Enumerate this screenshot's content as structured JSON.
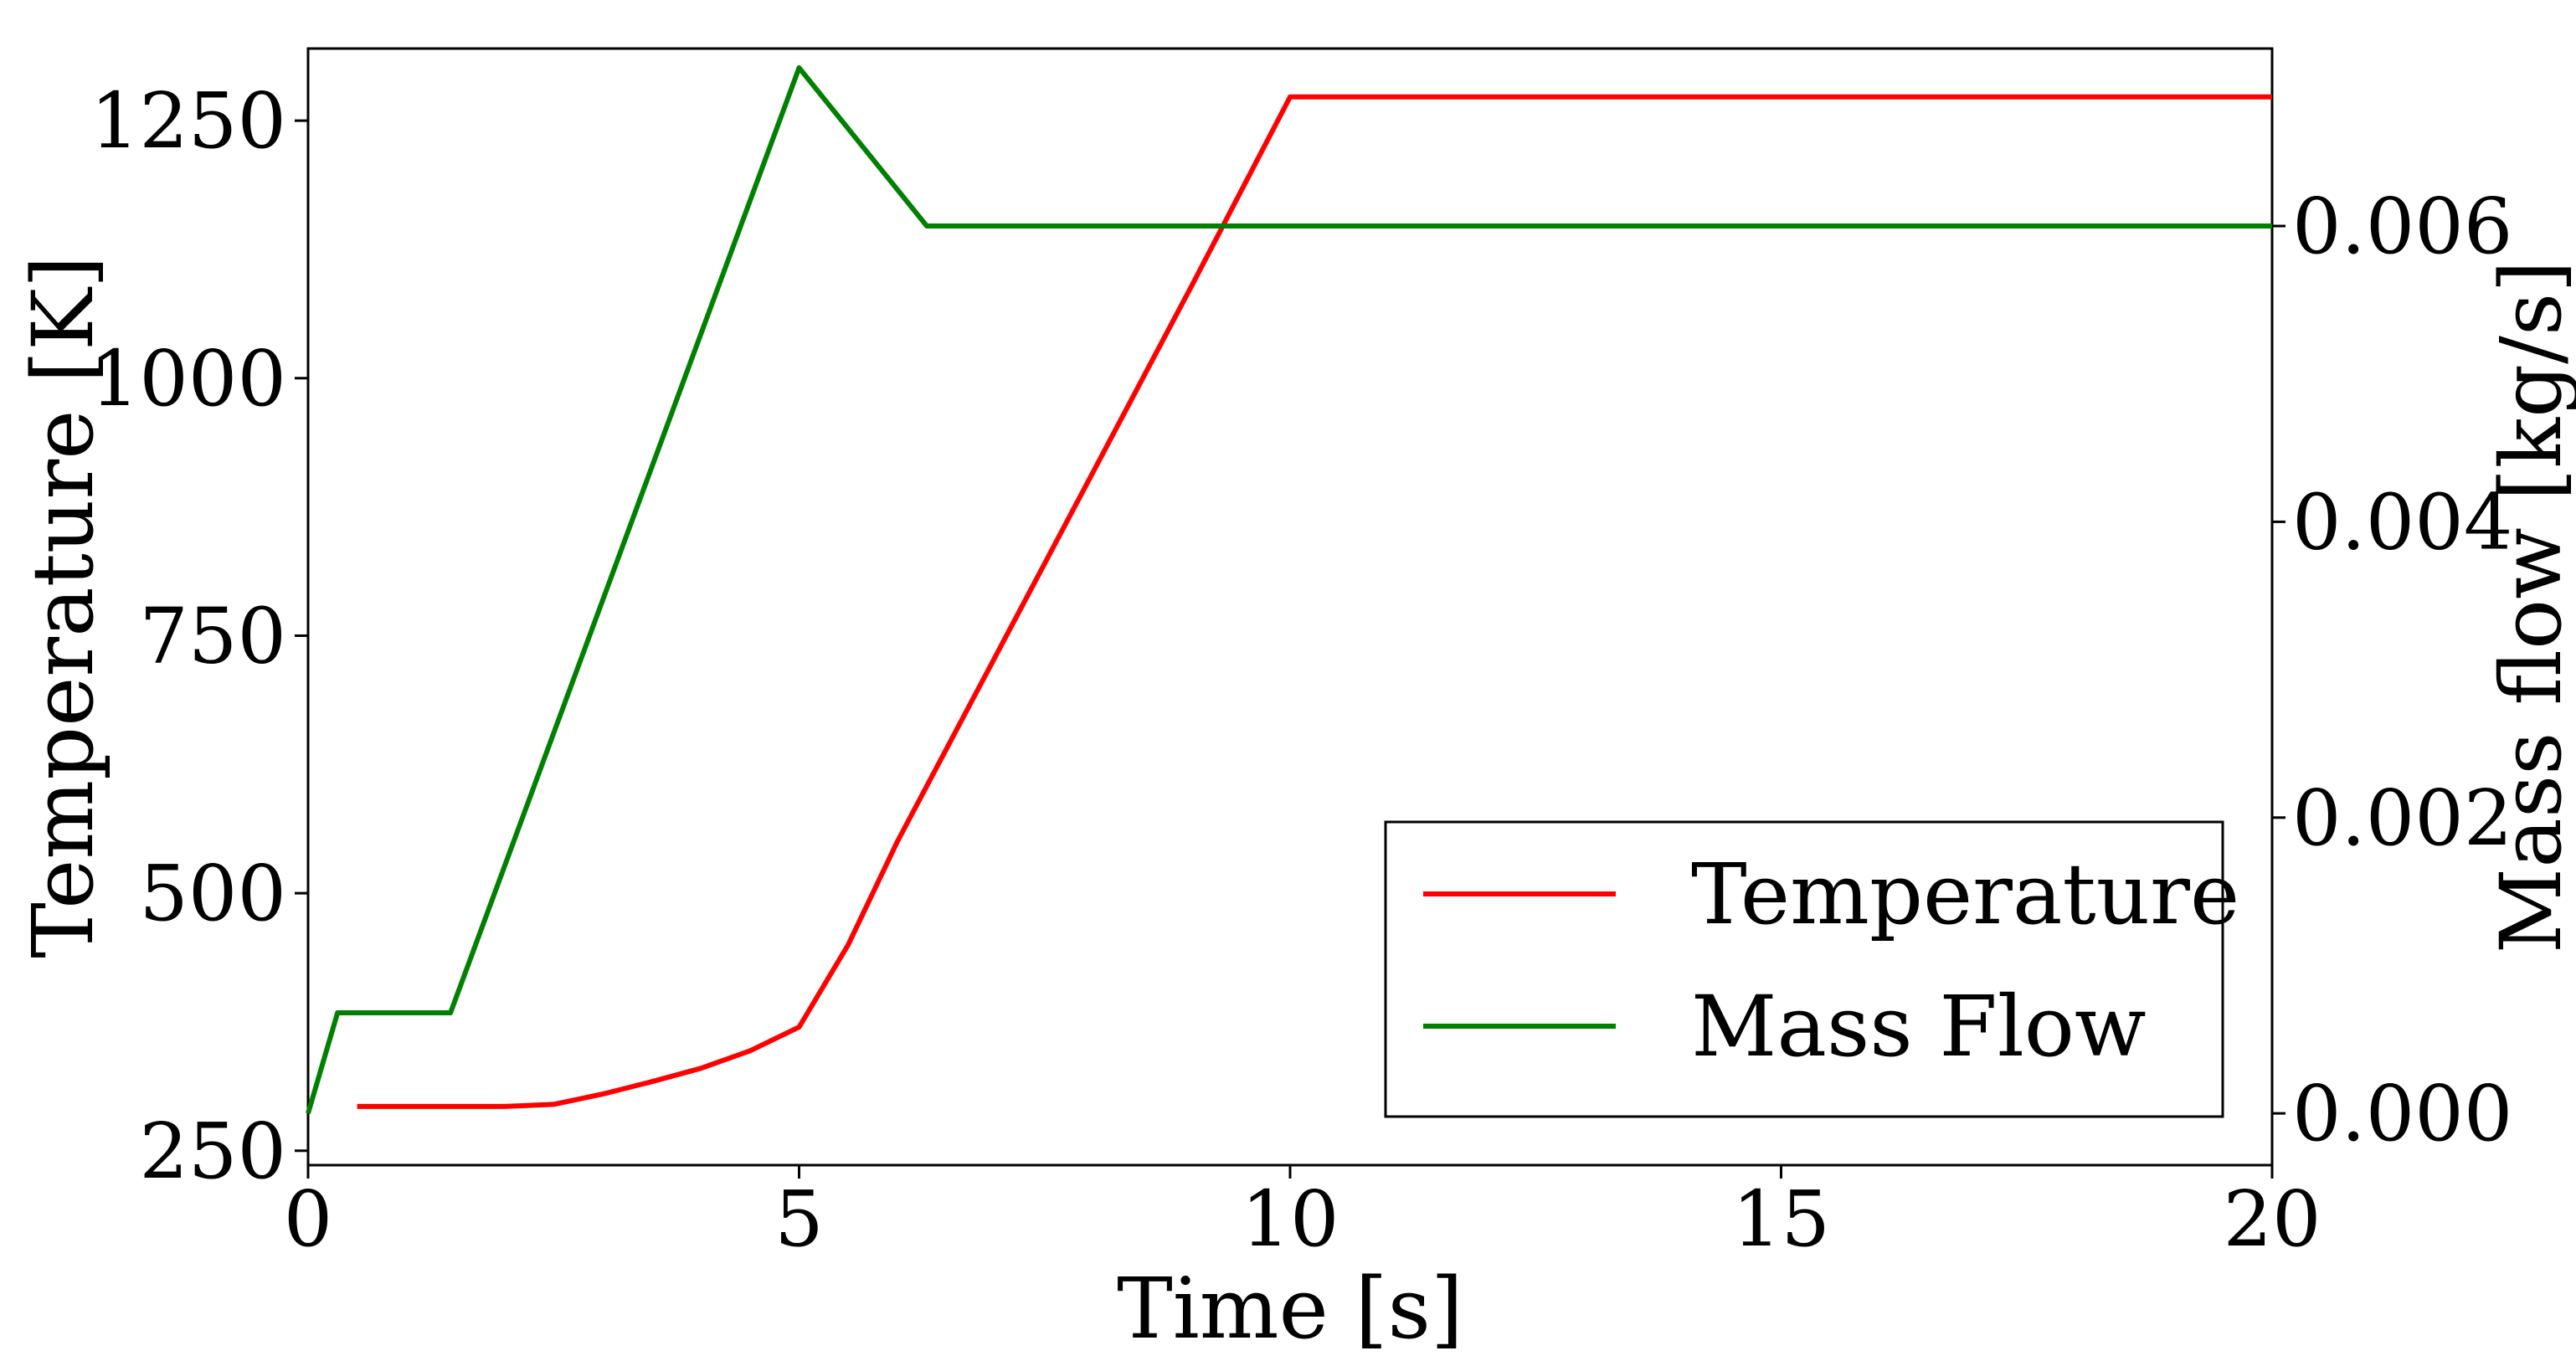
{
  "chart_data": {
    "type": "line",
    "title": "",
    "xlabel": "Time [s]",
    "ylabel_left": "Temperature [K]",
    "ylabel_right": "Mass flow [kg/s]",
    "xlim": [
      0,
      20
    ],
    "ylim_left": [
      236,
      1320
    ],
    "ylim_right": [
      -0.00035,
      0.0072
    ],
    "xticks": [
      0,
      5,
      10,
      15,
      20
    ],
    "xtick_labels": [
      "0",
      "5",
      "10",
      "15",
      "20"
    ],
    "yticks_left": [
      250,
      500,
      750,
      1000,
      1250
    ],
    "ytick_labels_left": [
      "250",
      "500",
      "750",
      "1000",
      "1250"
    ],
    "yticks_right": [
      0.0,
      0.002,
      0.004,
      0.006
    ],
    "ytick_labels_right": [
      "0.000",
      "0.002",
      "0.004",
      "0.006"
    ],
    "grid": false,
    "legend_position": "bottom-right",
    "series": [
      {
        "name": "Temperature",
        "label": "Temperature",
        "axis": "left",
        "color": "#ff0000",
        "x": [
          0.5,
          1.0,
          1.5,
          2.0,
          2.5,
          3.0,
          3.5,
          4.0,
          4.5,
          5.0,
          5.5,
          6.0,
          7.0,
          8.0,
          9.0,
          10.0,
          20.0
        ],
        "y": [
          293,
          293,
          293,
          293,
          295,
          305,
          317,
          330,
          347,
          370,
          450,
          550,
          730,
          910,
          1090,
          1273,
          1273
        ]
      },
      {
        "name": "Mass Flow",
        "label": "Mass Flow",
        "axis": "right",
        "color": "#008000",
        "x": [
          0.0,
          0.3,
          1.45,
          5.0,
          6.3,
          20.0
        ],
        "y": [
          0.0,
          0.00068,
          0.00068,
          0.00707,
          0.006,
          0.006
        ]
      }
    ]
  }
}
